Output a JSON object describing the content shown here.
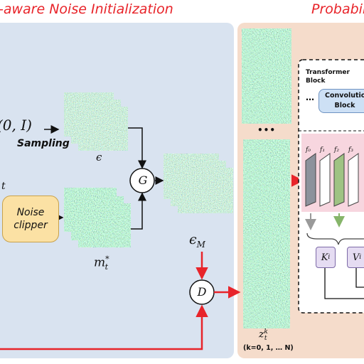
{
  "titles": {
    "left": "-aware Noise Initialization",
    "right": "Probabil"
  },
  "labels": {
    "normal_dist": "(0, I)",
    "sampling": "Sampling",
    "epsilon": "ϵ",
    "subscript_t": "t",
    "noise_clipper": "Noise clipper",
    "m_t_star": "m",
    "m_t_star_sup": "*",
    "m_t_star_sub": "t",
    "g_operator": "G",
    "d_operator": "D",
    "epsilon_m": "ϵ",
    "epsilon_m_sub": "M",
    "ellipsis_frames": "•••",
    "z_t_k": "z",
    "z_t_k_sup": "k",
    "z_t_k_sub": "t",
    "k_range": "(k=0, 1, … N)"
  },
  "network": {
    "transformer_block": "Transformer Block",
    "ellipsis": "…",
    "convolution_block": "Convolution Block",
    "features": [
      "f₀",
      "f₁",
      "f₂",
      "f₃"
    ],
    "k_label": "K",
    "v_label": "V",
    "kv_sub": "i"
  },
  "colors": {
    "red_arrow": "#e8242a",
    "left_panel": "#d9e3f0",
    "right_panel": "#f5dccb"
  }
}
